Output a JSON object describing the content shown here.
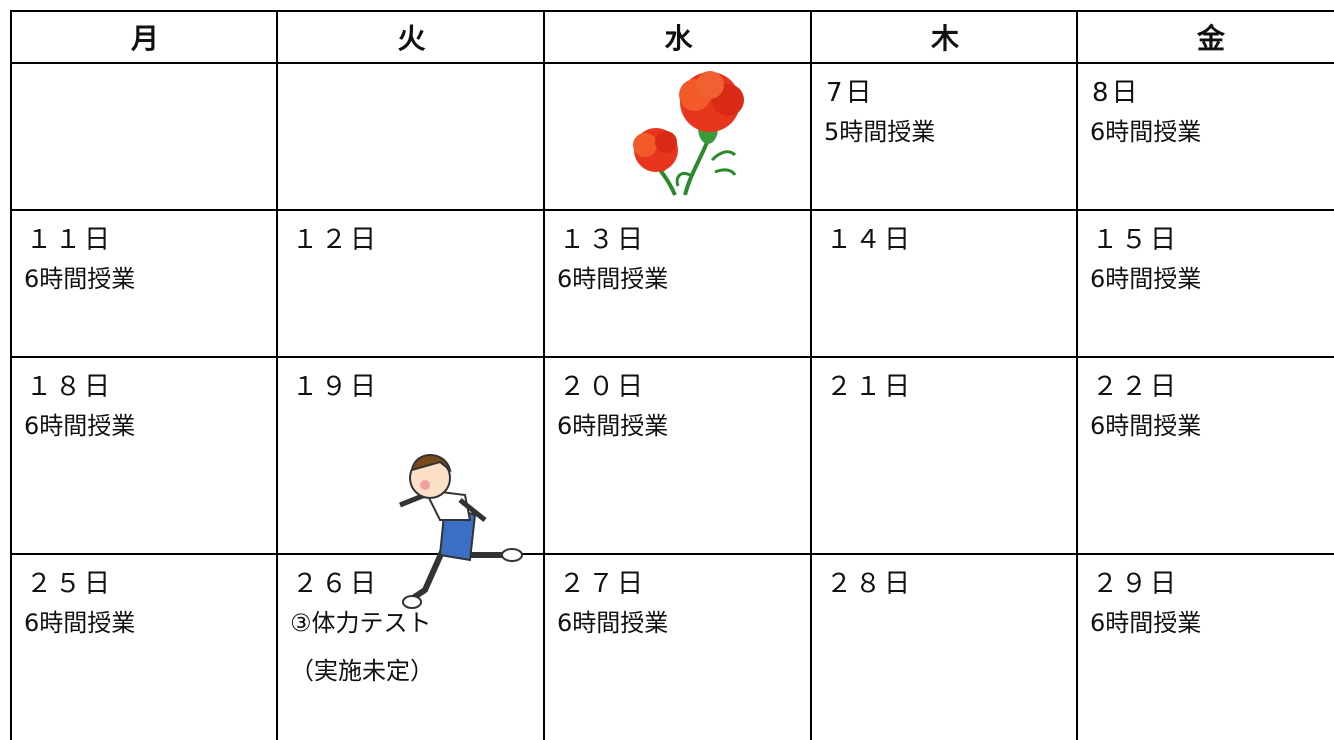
{
  "table": {
    "header": [
      "月",
      "火",
      "水",
      "木",
      "金"
    ],
    "rows": [
      [
        null,
        null,
        null,
        {
          "date": "7日",
          "lines": [
            "5時間授業"
          ]
        },
        {
          "date": "8日",
          "lines": [
            "6時間授業"
          ]
        }
      ],
      [
        {
          "date": "１１日",
          "lines": [
            "6時間授業"
          ]
        },
        {
          "date": "１２日"
        },
        {
          "date": "１３日",
          "lines": [
            "6時間授業"
          ]
        },
        {
          "date": "１４日"
        },
        {
          "date": "１５日",
          "lines": [
            "6時間授業"
          ]
        }
      ],
      [
        {
          "date": "１８日",
          "lines": [
            "6時間授業"
          ]
        },
        {
          "date": "１９日"
        },
        {
          "date": "２０日",
          "lines": [
            "6時間授業"
          ]
        },
        {
          "date": "２１日"
        },
        {
          "date": "２２日",
          "lines": [
            "6時間授業"
          ]
        }
      ],
      [
        {
          "date": "２５日",
          "lines": [
            "6時間授業"
          ]
        },
        {
          "date": "２６日",
          "lines": [
            "③体力テスト",
            "（実施未定）"
          ]
        },
        {
          "date": "２７日",
          "lines": [
            "6時間授業"
          ]
        },
        {
          "date": "２８日"
        },
        {
          "date": "２９日",
          "lines": [
            "6時間授業"
          ]
        }
      ]
    ]
  }
}
